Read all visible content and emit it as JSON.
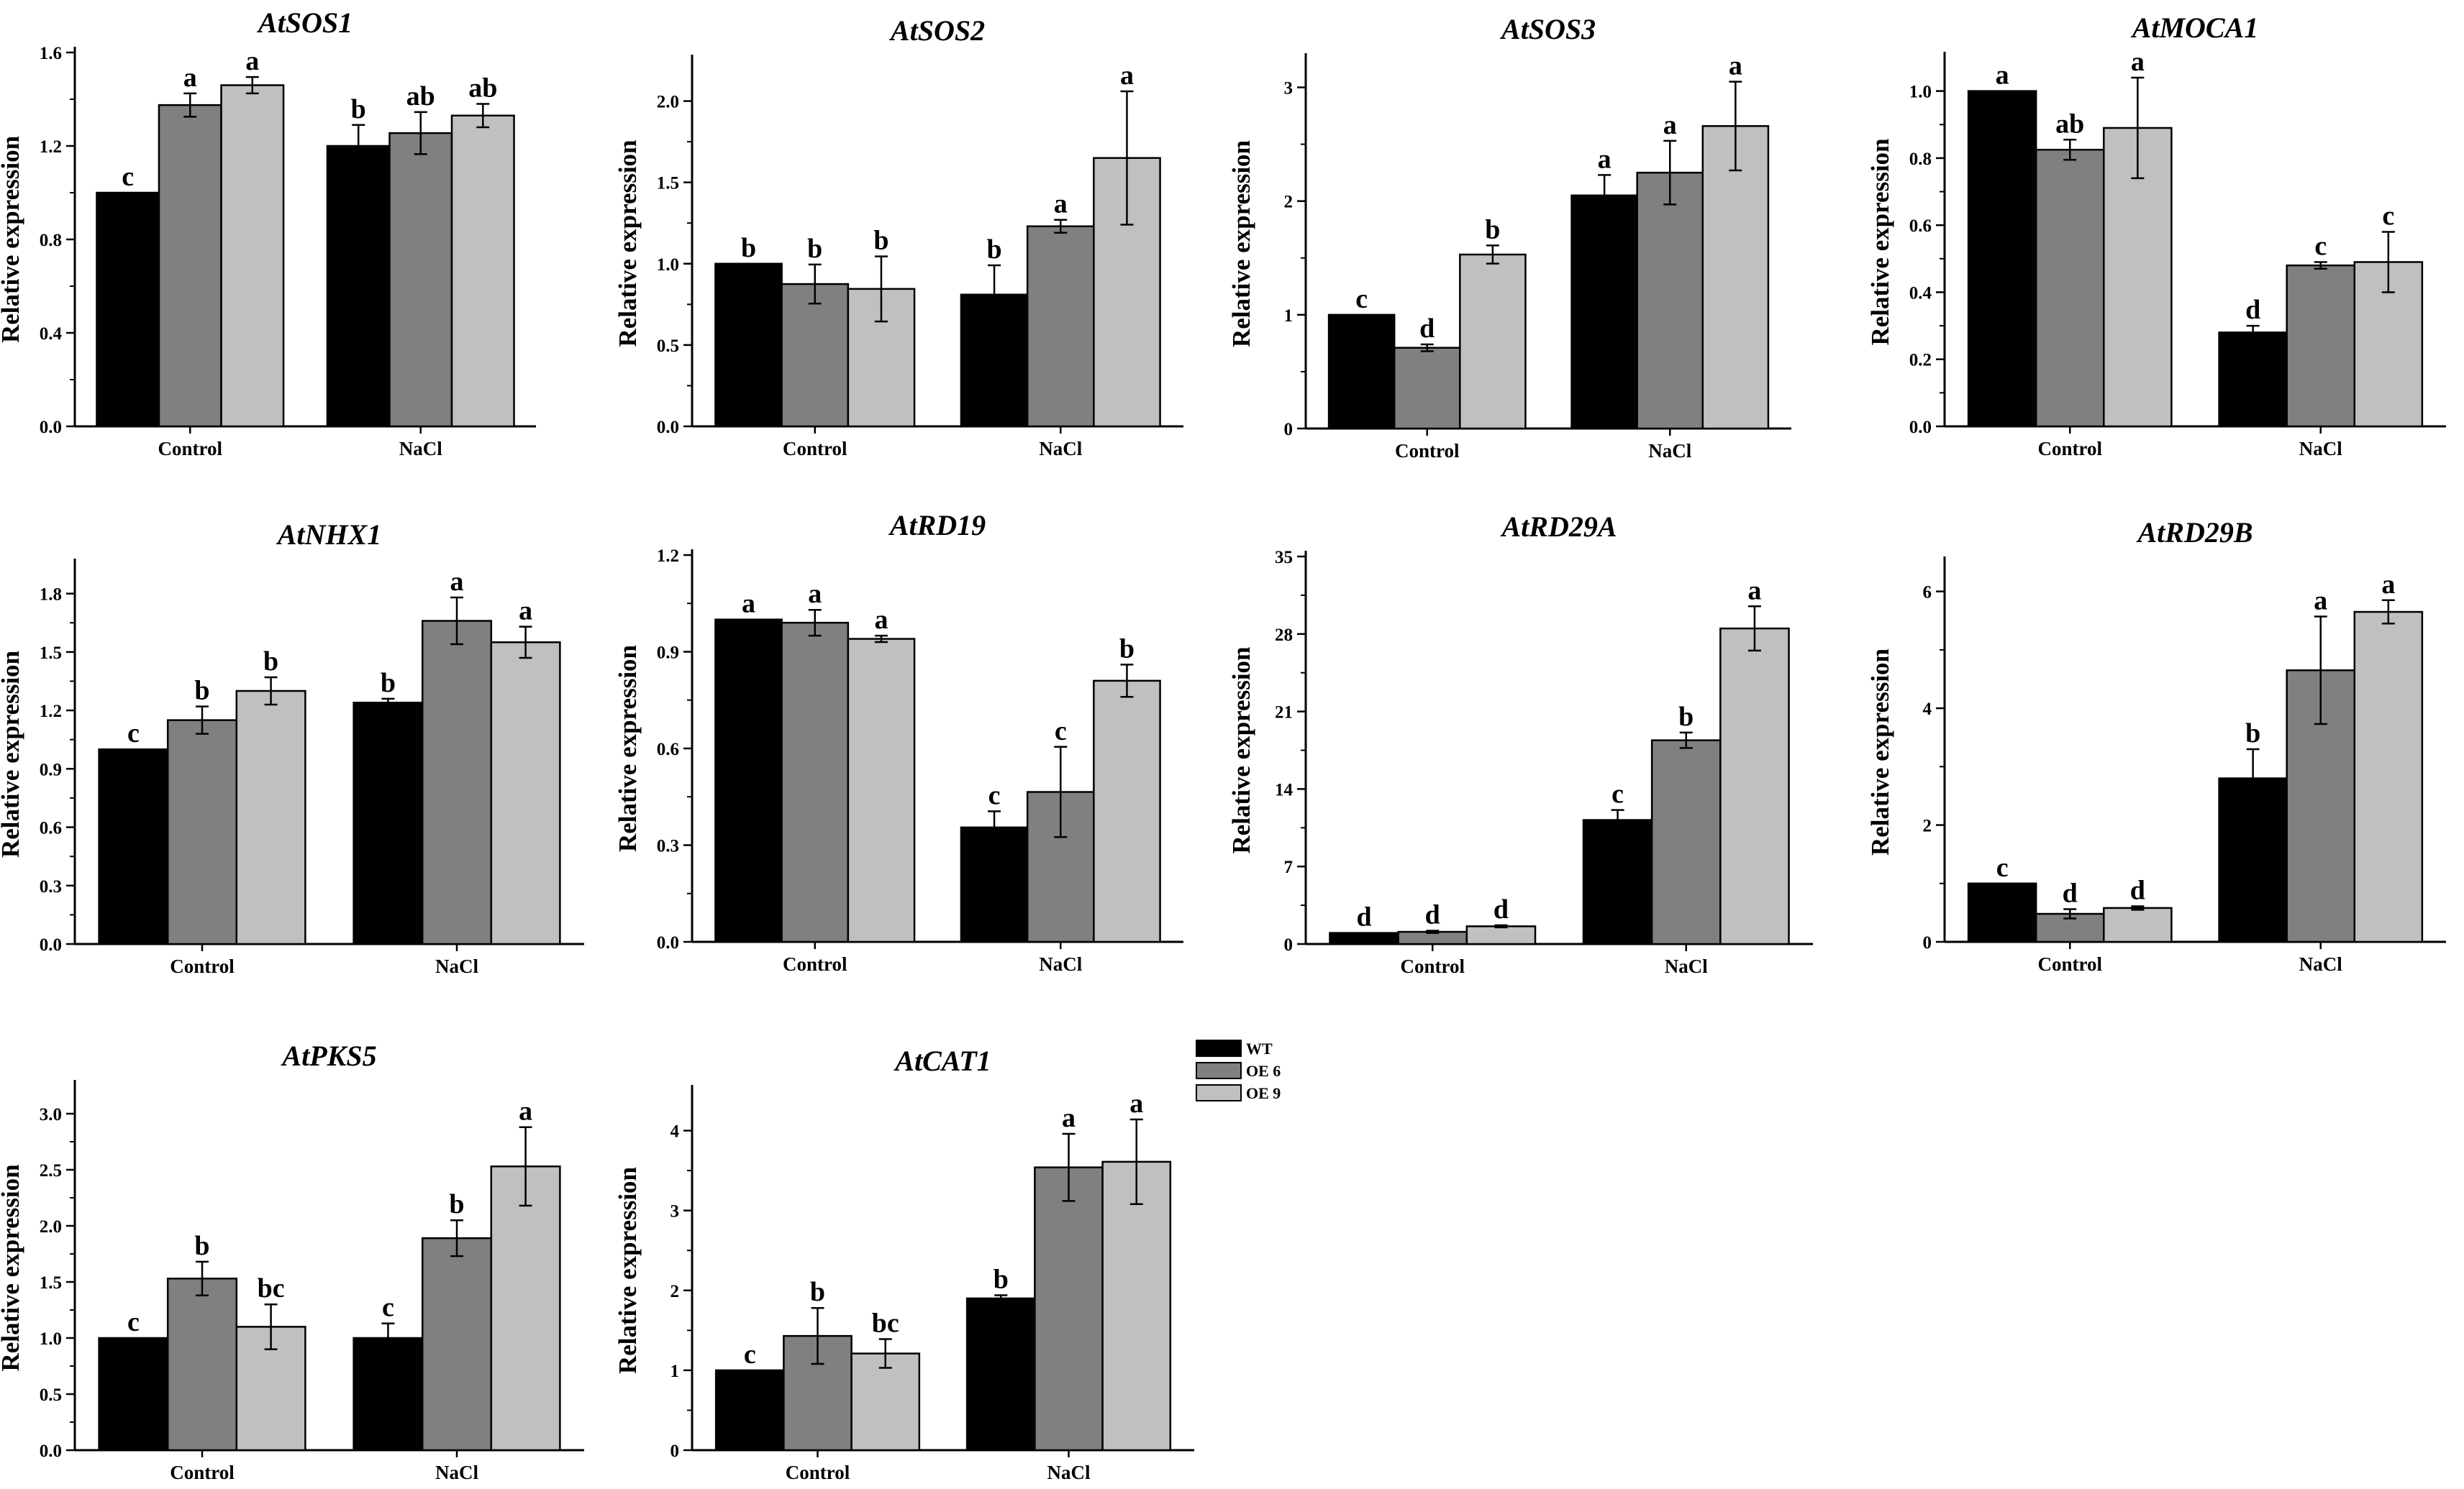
{
  "figure": {
    "ylabel": "Relative expression",
    "categories": [
      "Control",
      "NaCl"
    ],
    "legend": [
      {
        "name": "WT",
        "color": "#000000"
      },
      {
        "name": "OE 6",
        "color": "#808080"
      },
      {
        "name": "OE 9",
        "color": "#c0c0c0"
      }
    ]
  },
  "chart_data": [
    {
      "type": "bar",
      "title": "AtSOS1",
      "categories": [
        "Control",
        "NaCl"
      ],
      "ylabel": "Relative expression",
      "ylim": [
        0,
        1.6
      ],
      "yticks": [
        "0.0",
        "0.4",
        "0.8",
        "1.2",
        "1.6"
      ],
      "tick_values": [
        0,
        0.4,
        0.8,
        1.2,
        1.6
      ],
      "series": [
        {
          "name": "WT",
          "values": [
            1.0,
            1.2
          ],
          "errors": [
            0,
            0.09
          ],
          "letters": [
            "c",
            "b"
          ]
        },
        {
          "name": "OE 6",
          "values": [
            1.375,
            1.255
          ],
          "errors": [
            0.05,
            0.09
          ],
          "letters": [
            "a",
            "ab"
          ]
        },
        {
          "name": "OE 9",
          "values": [
            1.46,
            1.33
          ],
          "errors": [
            0.035,
            0.05
          ],
          "letters": [
            "a",
            "ab"
          ]
        }
      ]
    },
    {
      "type": "bar",
      "title": "AtSOS2",
      "categories": [
        "Control",
        "NaCl"
      ],
      "ylabel": "Relative expression",
      "ylim": [
        0,
        2.25
      ],
      "yticks": [
        "0.0",
        "0.5",
        "1.0",
        "1.5",
        "2.0"
      ],
      "tick_values": [
        0,
        0.5,
        1.0,
        1.5,
        2.0
      ],
      "series": [
        {
          "name": "WT",
          "values": [
            1.0,
            0.81
          ],
          "errors": [
            0,
            0.18
          ],
          "letters": [
            "b",
            "b"
          ]
        },
        {
          "name": "OE 6",
          "values": [
            0.875,
            1.23
          ],
          "errors": [
            0.12,
            0.04
          ],
          "letters": [
            "b",
            "a"
          ]
        },
        {
          "name": "OE 9",
          "values": [
            0.845,
            1.65
          ],
          "errors": [
            0.2,
            0.41
          ],
          "letters": [
            "b",
            "a"
          ]
        }
      ]
    },
    {
      "type": "bar",
      "title": "AtSOS3",
      "categories": [
        "Control",
        "NaCl"
      ],
      "ylabel": "Relative expression",
      "ylim": [
        0,
        3.25
      ],
      "yticks": [
        "0",
        "1",
        "2",
        "3"
      ],
      "tick_values": [
        0,
        1,
        2,
        3
      ],
      "series": [
        {
          "name": "WT",
          "values": [
            1.0,
            2.05
          ],
          "errors": [
            0,
            0.18
          ],
          "letters": [
            "c",
            "a"
          ]
        },
        {
          "name": "OE 6",
          "values": [
            0.71,
            2.25
          ],
          "errors": [
            0.03,
            0.28
          ],
          "letters": [
            "d",
            "a"
          ]
        },
        {
          "name": "OE 9",
          "values": [
            1.53,
            2.66
          ],
          "errors": [
            0.08,
            0.39
          ],
          "letters": [
            "b",
            "a"
          ]
        }
      ]
    },
    {
      "type": "bar",
      "title": "AtMOCA1",
      "categories": [
        "Control",
        "NaCl"
      ],
      "ylabel": "Relative expression",
      "ylim": [
        0,
        1.1
      ],
      "yticks": [
        "0.0",
        "0.2",
        "0.4",
        "0.6",
        "0.8",
        "1.0"
      ],
      "tick_values": [
        0,
        0.2,
        0.4,
        0.6,
        0.8,
        1.0
      ],
      "series": [
        {
          "name": "WT",
          "values": [
            1.0,
            0.28
          ],
          "errors": [
            0,
            0.02
          ],
          "letters": [
            "a",
            "d"
          ]
        },
        {
          "name": "OE 6",
          "values": [
            0.825,
            0.48
          ],
          "errors": [
            0.03,
            0.01
          ],
          "letters": [
            "ab",
            "c"
          ]
        },
        {
          "name": "OE 9",
          "values": [
            0.89,
            0.49
          ],
          "errors": [
            0.15,
            0.09
          ],
          "letters": [
            "a",
            "c"
          ]
        }
      ]
    },
    {
      "type": "bar",
      "title": "AtNHX1",
      "categories": [
        "Control",
        "NaCl"
      ],
      "ylabel": "Relative expression",
      "ylim": [
        0,
        1.95
      ],
      "yticks": [
        "0.0",
        "0.3",
        "0.6",
        "0.9",
        "1.2",
        "1.5",
        "1.8"
      ],
      "tick_values": [
        0,
        0.3,
        0.6,
        0.9,
        1.2,
        1.5,
        1.8
      ],
      "series": [
        {
          "name": "WT",
          "values": [
            1.0,
            1.24
          ],
          "errors": [
            0,
            0.02
          ],
          "letters": [
            "c",
            "b"
          ]
        },
        {
          "name": "OE 6",
          "values": [
            1.15,
            1.66
          ],
          "errors": [
            0.07,
            0.12
          ],
          "letters": [
            "b",
            "a"
          ]
        },
        {
          "name": "OE 9",
          "values": [
            1.3,
            1.55
          ],
          "errors": [
            0.07,
            0.08
          ],
          "letters": [
            "b",
            "a"
          ]
        }
      ]
    },
    {
      "type": "bar",
      "title": "AtRD19",
      "categories": [
        "Control",
        "NaCl"
      ],
      "ylabel": "Relative expression",
      "ylim": [
        0,
        1.2
      ],
      "yticks": [
        "0.0",
        "0.3",
        "0.6",
        "0.9",
        "1.2"
      ],
      "tick_values": [
        0,
        0.3,
        0.6,
        0.9,
        1.2
      ],
      "series": [
        {
          "name": "WT",
          "values": [
            1.0,
            0.355
          ],
          "errors": [
            0,
            0.05
          ],
          "letters": [
            "a",
            "c"
          ]
        },
        {
          "name": "OE 6",
          "values": [
            0.99,
            0.465
          ],
          "errors": [
            0.04,
            0.14
          ],
          "letters": [
            "a",
            "c"
          ]
        },
        {
          "name": "OE 9",
          "values": [
            0.94,
            0.81
          ],
          "errors": [
            0.01,
            0.05
          ],
          "letters": [
            "a",
            "b"
          ]
        }
      ]
    },
    {
      "type": "bar",
      "title": "AtRD29A",
      "categories": [
        "Control",
        "NaCl"
      ],
      "ylabel": "Relative expression",
      "ylim": [
        0,
        35
      ],
      "yticks": [
        "0",
        "7",
        "14",
        "21",
        "28",
        "35"
      ],
      "tick_values": [
        0,
        7,
        14,
        21,
        28,
        35
      ],
      "series": [
        {
          "name": "WT",
          "values": [
            1.0,
            11.2
          ],
          "errors": [
            0,
            0.9
          ],
          "letters": [
            "d",
            "c"
          ]
        },
        {
          "name": "OE 6",
          "values": [
            1.1,
            18.4
          ],
          "errors": [
            0.1,
            0.7
          ],
          "letters": [
            "d",
            "b"
          ]
        },
        {
          "name": "OE 9",
          "values": [
            1.6,
            28.5
          ],
          "errors": [
            0.1,
            2.0
          ],
          "letters": [
            "d",
            "a"
          ]
        }
      ]
    },
    {
      "type": "bar",
      "title": "AtRD29B",
      "categories": [
        "Control",
        "NaCl"
      ],
      "ylabel": "Relative expression",
      "ylim": [
        0,
        6.5
      ],
      "yticks": [
        "0",
        "2",
        "4",
        "6"
      ],
      "tick_values": [
        0,
        2,
        4,
        6
      ],
      "series": [
        {
          "name": "WT",
          "values": [
            1.0,
            2.8
          ],
          "errors": [
            0,
            0.5
          ],
          "letters": [
            "c",
            "b"
          ]
        },
        {
          "name": "OE 6",
          "values": [
            0.48,
            4.65
          ],
          "errors": [
            0.08,
            0.92
          ],
          "letters": [
            "d",
            "a"
          ]
        },
        {
          "name": "OE 9",
          "values": [
            0.58,
            5.65
          ],
          "errors": [
            0.03,
            0.2
          ],
          "letters": [
            "d",
            "a"
          ]
        }
      ]
    },
    {
      "type": "bar",
      "title": "AtPKS5",
      "categories": [
        "Control",
        "NaCl"
      ],
      "ylabel": "Relative expression",
      "ylim": [
        0,
        3.25
      ],
      "yticks": [
        "0.0",
        "0.5",
        "1.0",
        "1.5",
        "2.0",
        "2.5",
        "3.0"
      ],
      "tick_values": [
        0,
        0.5,
        1.0,
        1.5,
        2.0,
        2.5,
        3.0
      ],
      "series": [
        {
          "name": "WT",
          "values": [
            1.0,
            1.0
          ],
          "errors": [
            0,
            0.13
          ],
          "letters": [
            "c",
            "c"
          ]
        },
        {
          "name": "OE 6",
          "values": [
            1.53,
            1.89
          ],
          "errors": [
            0.15,
            0.16
          ],
          "letters": [
            "b",
            "b"
          ]
        },
        {
          "name": "OE 9",
          "values": [
            1.1,
            2.53
          ],
          "errors": [
            0.2,
            0.35
          ],
          "letters": [
            "bc",
            "a"
          ]
        }
      ]
    },
    {
      "type": "bar",
      "title": "AtCAT1",
      "categories": [
        "Control",
        "NaCl"
      ],
      "ylabel": "Relative expression",
      "ylim": [
        0,
        4.5
      ],
      "yticks": [
        "0",
        "1",
        "2",
        "3",
        "4"
      ],
      "tick_values": [
        0,
        1,
        2,
        3,
        4
      ],
      "series": [
        {
          "name": "WT",
          "values": [
            1.0,
            1.9
          ],
          "errors": [
            0,
            0.04
          ],
          "letters": [
            "c",
            "b"
          ]
        },
        {
          "name": "OE 6",
          "values": [
            1.43,
            3.54
          ],
          "errors": [
            0.35,
            0.42
          ],
          "letters": [
            "b",
            "a"
          ]
        },
        {
          "name": "OE 9",
          "values": [
            1.21,
            3.61
          ],
          "errors": [
            0.18,
            0.53
          ],
          "letters": [
            "bc",
            "a"
          ]
        }
      ]
    }
  ]
}
